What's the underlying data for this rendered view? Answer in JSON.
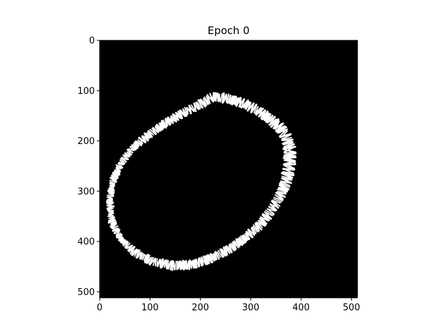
{
  "chart_data": {
    "type": "heatmap",
    "title": "Epoch 0",
    "xlabel": "",
    "ylabel": "",
    "image_size": [
      512,
      512
    ],
    "xlim": [
      0,
      512
    ],
    "ylim": [
      512,
      0
    ],
    "x_ticks": [
      0,
      100,
      200,
      300,
      400,
      500
    ],
    "y_ticks": [
      0,
      100,
      200,
      300,
      400,
      500
    ],
    "x_tick_labels": [
      "0",
      "100",
      "200",
      "300",
      "400",
      "500"
    ],
    "y_tick_labels": [
      "0",
      "100",
      "200",
      "300",
      "400",
      "500"
    ],
    "colormap": "gray",
    "background_color": "#000000",
    "foreground_color": "#ffffff",
    "grid": false,
    "legend": "none",
    "ring": {
      "description_shape": "ellipse",
      "outline_points": [
        [
          225,
          112
        ],
        [
          255,
          116
        ],
        [
          285,
          125
        ],
        [
          315,
          140
        ],
        [
          340,
          158
        ],
        [
          360,
          175
        ],
        [
          372,
          195
        ],
        [
          378,
          220
        ],
        [
          377,
          250
        ],
        [
          370,
          282
        ],
        [
          358,
          310
        ],
        [
          340,
          340
        ],
        [
          318,
          368
        ],
        [
          290,
          392
        ],
        [
          260,
          414
        ],
        [
          225,
          432
        ],
        [
          185,
          446
        ],
        [
          145,
          448
        ],
        [
          105,
          440
        ],
        [
          70,
          422
        ],
        [
          42,
          395
        ],
        [
          24,
          360
        ],
        [
          20,
          320
        ],
        [
          26,
          280
        ],
        [
          42,
          245
        ],
        [
          65,
          215
        ],
        [
          95,
          190
        ],
        [
          130,
          165
        ],
        [
          165,
          145
        ],
        [
          195,
          130
        ]
      ],
      "thickness": [
        16,
        16,
        16,
        16,
        17,
        18,
        20,
        22,
        22,
        20,
        18,
        16,
        15,
        14,
        14,
        14,
        15,
        15,
        14,
        12,
        10,
        10,
        10,
        10,
        10,
        11,
        12,
        13,
        14,
        15
      ]
    }
  }
}
